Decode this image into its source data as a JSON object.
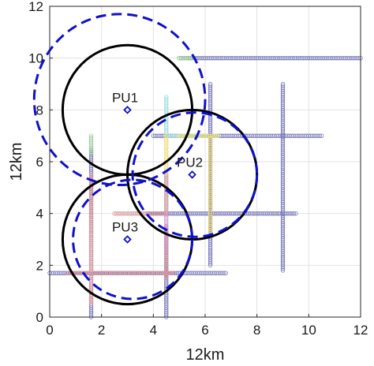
{
  "chart_data": {
    "type": "scatter",
    "xlabel": "12km",
    "ylabel": "12km",
    "xlim": [
      0,
      12
    ],
    "ylim": [
      0,
      12
    ],
    "xticks": [
      0,
      2,
      4,
      6,
      8,
      10,
      12
    ],
    "yticks": [
      0,
      2,
      4,
      6,
      8,
      10,
      12
    ],
    "grid": true,
    "primary_users": [
      {
        "label": "PU1",
        "x": 3.0,
        "y": 8.0
      },
      {
        "label": "PU2",
        "x": 5.5,
        "y": 5.5
      },
      {
        "label": "PU3",
        "x": 3.0,
        "y": 3.0
      }
    ],
    "solid_circles": [
      {
        "cx": 3.0,
        "cy": 8.0,
        "r": 2.5
      },
      {
        "cx": 5.5,
        "cy": 5.5,
        "r": 2.5
      },
      {
        "cx": 3.0,
        "cy": 3.0,
        "r": 2.5
      }
    ],
    "dashed_circles": [
      {
        "cx": 2.7,
        "cy": 8.4,
        "r": 3.3
      },
      {
        "cx": 5.6,
        "cy": 5.5,
        "r": 2.4
      },
      {
        "cx": 3.2,
        "cy": 3.0,
        "r": 2.3
      }
    ],
    "secondary_user_paths": [
      {
        "name": "path-1",
        "color": "#7777bb",
        "x": [
          5.0,
          12.0
        ],
        "y": [
          10.0,
          10.0
        ]
      },
      {
        "name": "path-2",
        "color": "#7777bb",
        "x": [
          9.0,
          9.0
        ],
        "y": [
          1.8,
          9.0
        ]
      },
      {
        "name": "path-3",
        "color": "#7777bb",
        "x": [
          4.0,
          10.5
        ],
        "y": [
          7.0,
          7.0
        ]
      },
      {
        "name": "path-4",
        "color": "#7777bb",
        "x": [
          6.2,
          6.2
        ],
        "y": [
          2.0,
          9.0
        ]
      },
      {
        "name": "path-5",
        "color": "#7777bb",
        "x": [
          3.8,
          9.5
        ],
        "y": [
          4.0,
          4.0
        ]
      },
      {
        "name": "path-6",
        "color": "#7777bb",
        "x": [
          0.0,
          6.8
        ],
        "y": [
          1.7,
          1.7
        ]
      },
      {
        "name": "path-7",
        "color": "#7777bb",
        "x": [
          1.6,
          1.6
        ],
        "y": [
          0.0,
          6.5
        ]
      },
      {
        "name": "path-8",
        "color": "#7777bb",
        "x": [
          4.5,
          4.5
        ],
        "y": [
          0.0,
          3.5
        ]
      },
      {
        "name": "path-9",
        "color": "#99cc99",
        "x": [
          5.0,
          5.5
        ],
        "y": [
          10.0,
          10.0
        ]
      },
      {
        "name": "path-10",
        "color": "#99cc99",
        "x": [
          1.6,
          1.6
        ],
        "y": [
          6.3,
          7.0
        ]
      },
      {
        "name": "path-11",
        "color": "#99dddd",
        "x": [
          4.5,
          4.5
        ],
        "y": [
          7.0,
          8.5
        ]
      },
      {
        "name": "path-12",
        "color": "#99dddd",
        "x": [
          4.5,
          6.5
        ],
        "y": [
          7.0,
          7.0
        ]
      },
      {
        "name": "path-13",
        "color": "#eedd77",
        "x": [
          6.2,
          6.2
        ],
        "y": [
          3.2,
          7.0
        ]
      },
      {
        "name": "path-14",
        "color": "#eedd77",
        "x": [
          4.5,
          4.5
        ],
        "y": [
          4.0,
          7.0
        ]
      },
      {
        "name": "path-15",
        "color": "#eedd77",
        "x": [
          5.0,
          6.5
        ],
        "y": [
          7.0,
          7.0
        ]
      },
      {
        "name": "path-16",
        "color": "#dd9999",
        "x": [
          1.6,
          1.6
        ],
        "y": [
          0.5,
          5.5
        ]
      },
      {
        "name": "path-17",
        "color": "#dd9999",
        "x": [
          0.7,
          4.8
        ],
        "y": [
          1.7,
          1.7
        ]
      },
      {
        "name": "path-18",
        "color": "#dd9999",
        "x": [
          2.5,
          4.5
        ],
        "y": [
          4.0,
          4.0
        ]
      },
      {
        "name": "path-19",
        "color": "#dd9999",
        "x": [
          4.5,
          4.5
        ],
        "y": [
          1.5,
          3.5
        ]
      },
      {
        "name": "path-20",
        "color": "#cc99cc",
        "x": [
          4.5,
          4.5
        ],
        "y": [
          2.5,
          5.5
        ]
      }
    ],
    "colors": {
      "solid_circle": "#000000",
      "dashed_circle": "#1010cc",
      "pu_marker": "#1010cc",
      "grid": "#e2e2e2"
    }
  }
}
